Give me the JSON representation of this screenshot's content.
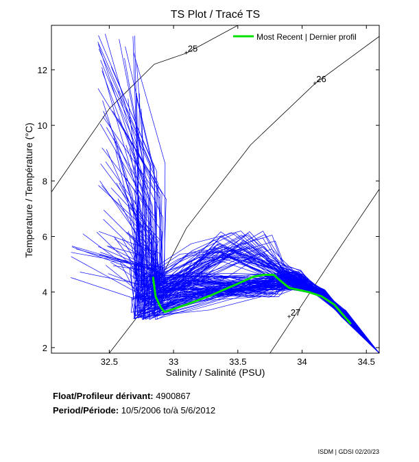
{
  "chart_data": {
    "type": "line",
    "title": "TS Plot / Tracé TS",
    "xlabel": "Salinity / Salinité (PSU)",
    "ylabel": "Temperature / Température (°C)",
    "xlim": [
      32.05,
      34.6
    ],
    "ylim": [
      1.8,
      13.6
    ],
    "x_ticks": [
      32.5,
      33,
      33.5,
      34,
      34.5
    ],
    "x_tick_labels": [
      "32.5",
      "33",
      "33.5",
      "34",
      "34.5"
    ],
    "y_ticks": [
      2,
      4,
      6,
      8,
      10,
      12
    ],
    "y_tick_labels": [
      "2",
      "4",
      "6",
      "8",
      "10",
      "12"
    ],
    "grid": false,
    "legend_placement": "top-right",
    "profile_color": "#0000ff",
    "recent_color": "#00e000",
    "series": [
      {
        "name": "Most Recent | Dernier profil",
        "x": [
          32.84,
          32.86,
          32.9,
          32.93,
          33.1,
          33.3,
          33.5,
          33.62,
          33.7,
          33.78,
          33.82,
          33.9,
          34.05,
          34.15,
          34.25,
          34.38
        ],
        "y": [
          4.55,
          3.85,
          3.45,
          3.28,
          3.55,
          3.9,
          4.3,
          4.55,
          4.62,
          4.62,
          4.45,
          4.15,
          4.0,
          3.85,
          3.55,
          2.85
        ]
      }
    ],
    "isopycnals": [
      {
        "label": "25",
        "label_x": 33.1,
        "label_y": 12.6
      },
      {
        "label": "26",
        "label_x": 34.1,
        "label_y": 11.5
      },
      {
        "label": "27",
        "label_x": 33.9,
        "label_y": 3.1
      }
    ]
  },
  "info": {
    "float_label": "Float/Profileur dérivant:",
    "float_value": "4900867",
    "period_label": "Period/Période:",
    "period_value": "10/5/2006  to/à  5/6/2012"
  },
  "credit": "ISDM | GDSI  02/20/23"
}
